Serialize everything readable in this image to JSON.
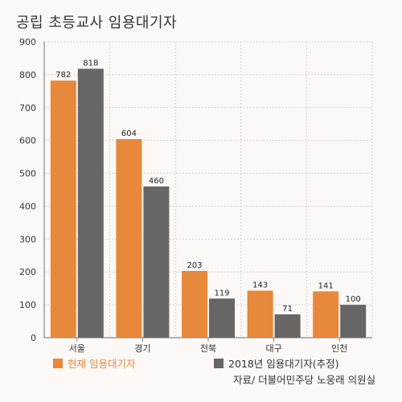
{
  "chart_data": {
    "type": "bar",
    "title": "공립 초등교사 임용대기자",
    "categories": [
      "서울",
      "경기",
      "전북",
      "대구",
      "인천"
    ],
    "series": [
      {
        "name": "현재 임용대기자",
        "values": [
          782,
          604,
          203,
          143,
          141
        ],
        "color": "#e8883a"
      },
      {
        "name": "2018년 임용대기자(추정)",
        "values": [
          818,
          460,
          119,
          71,
          100
        ],
        "color": "#666666"
      }
    ],
    "ylim": [
      0,
      900
    ],
    "yticks": [
      0,
      100,
      200,
      300,
      400,
      500,
      600,
      700,
      800,
      900
    ],
    "grid": true,
    "legend_position": "bottom",
    "source": "자료/ 더불어민주당 노웅래 의원실"
  }
}
